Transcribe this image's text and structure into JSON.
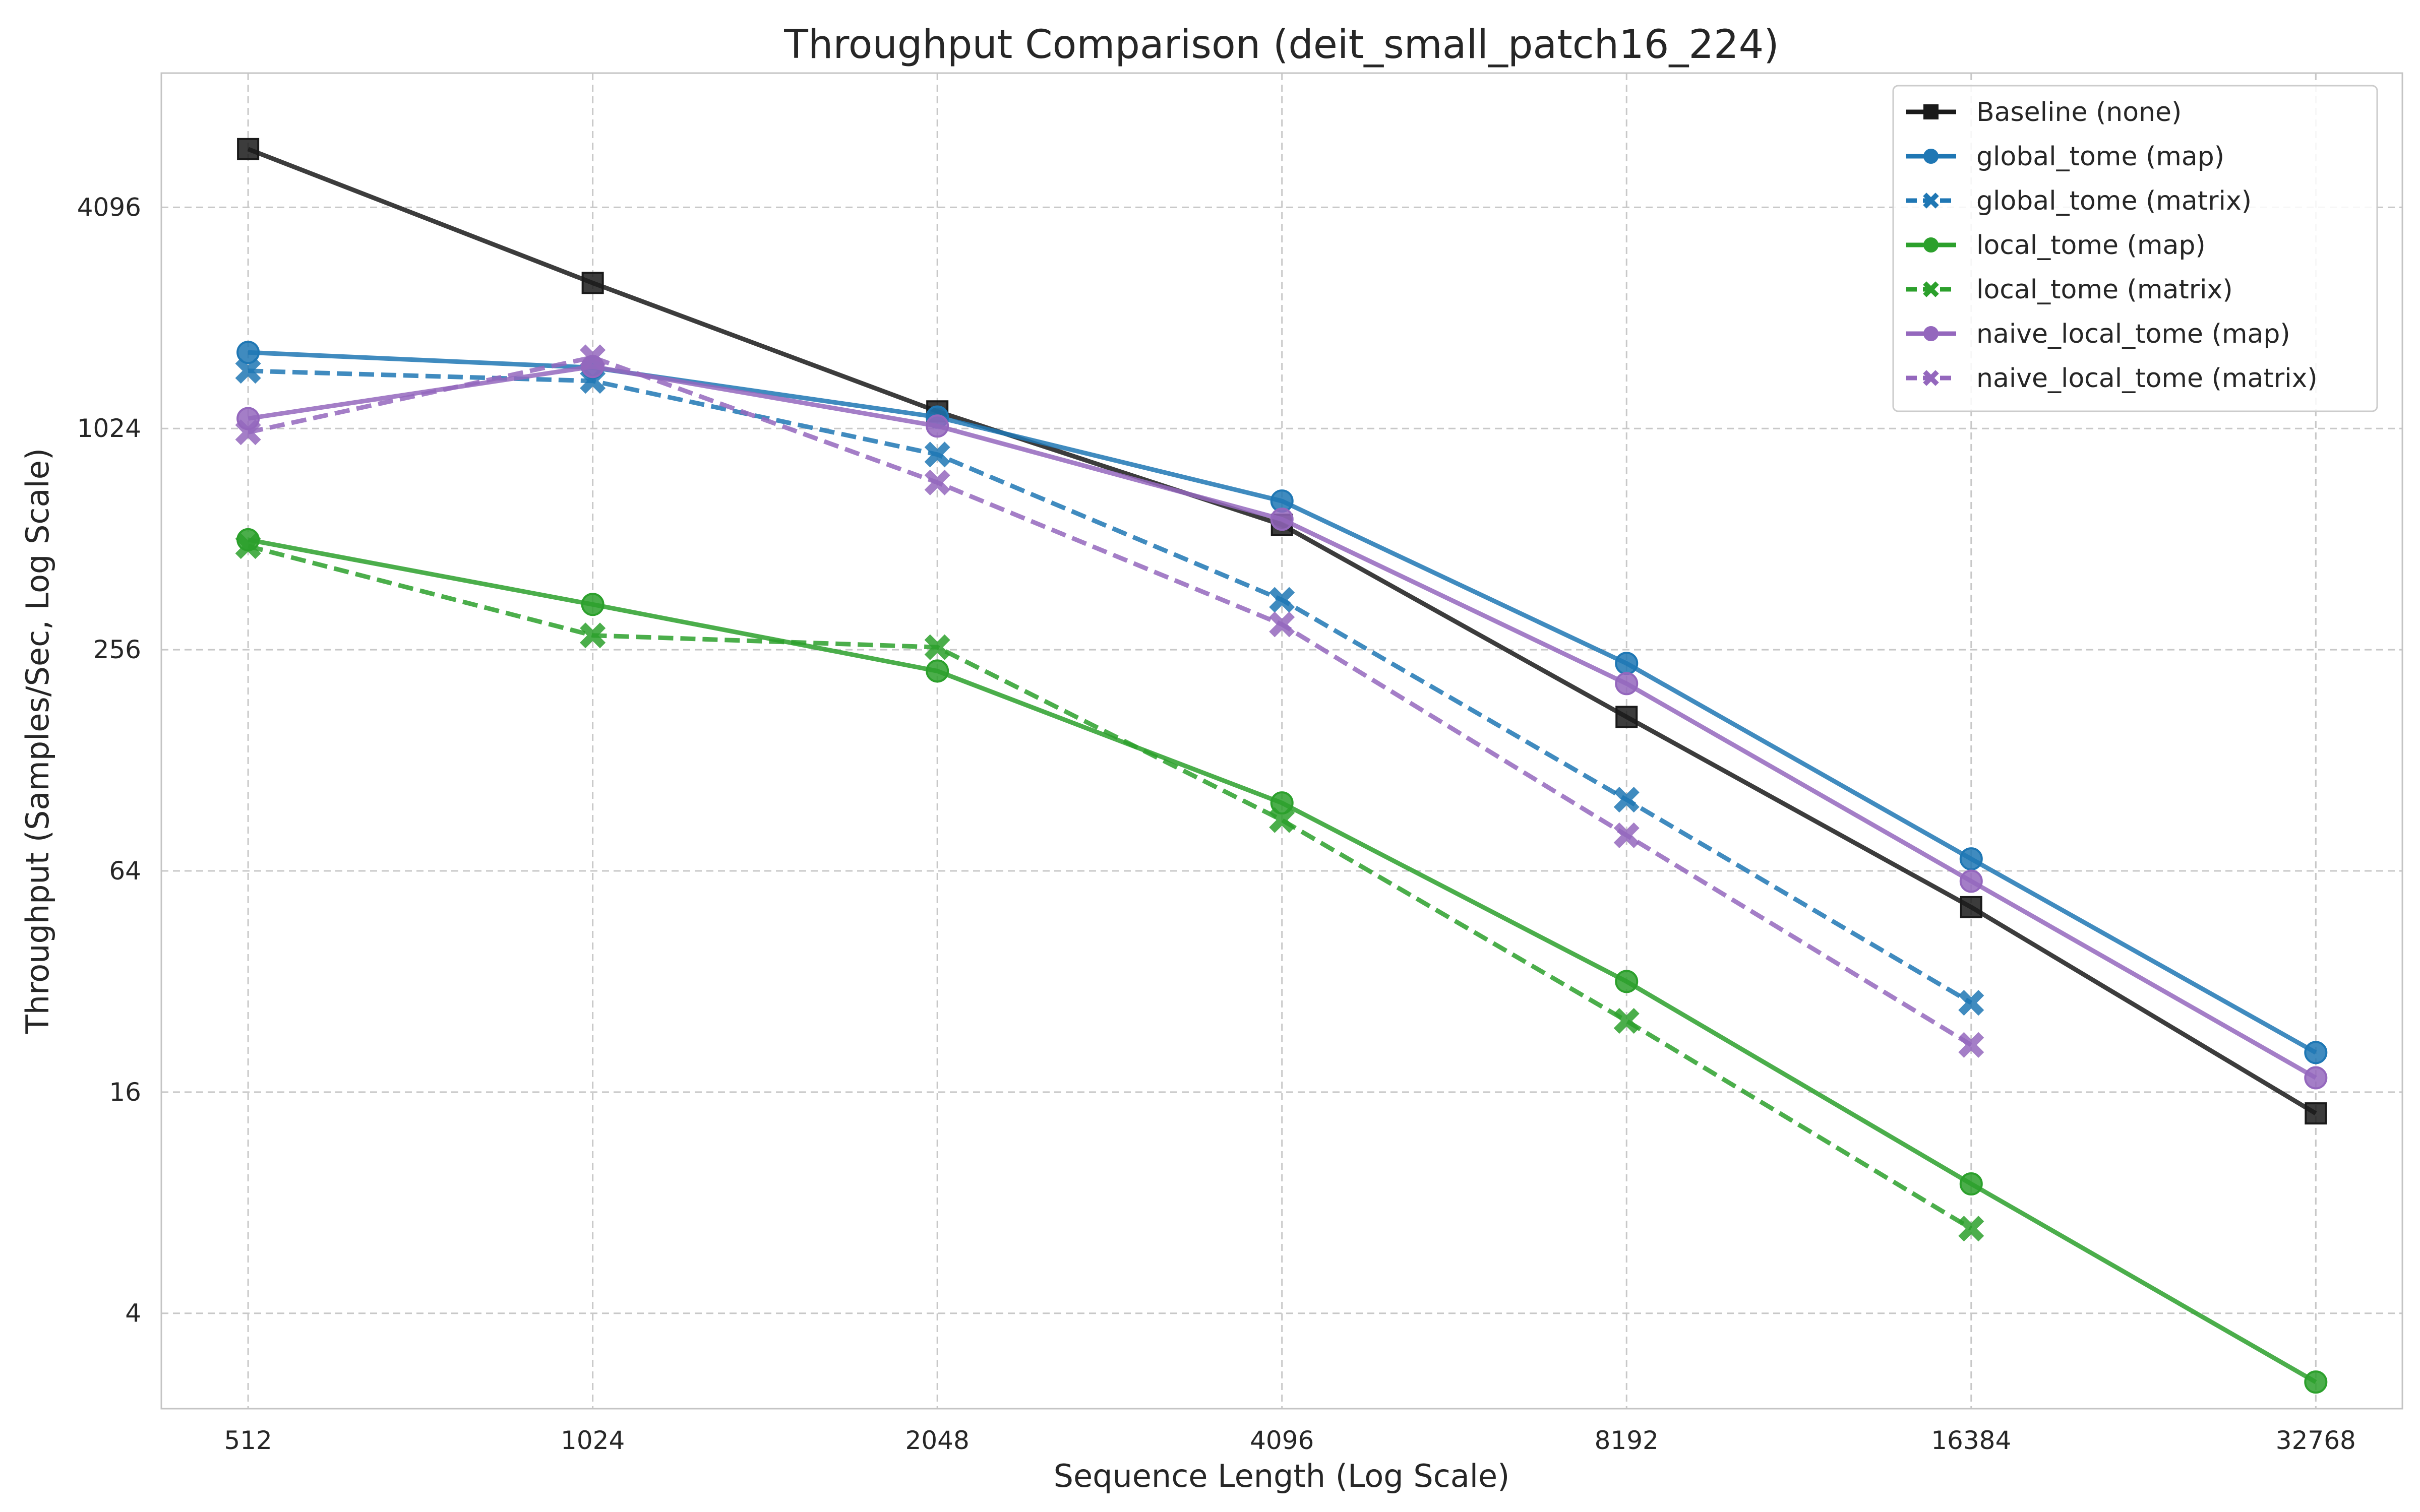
{
  "chart_data": {
    "type": "line",
    "title": "Throughput Comparison (deit_small_patch16_224)",
    "xlabel": "Sequence Length (Log Scale)",
    "ylabel": "Throughput (Samples/Sec, Log Scale)",
    "x_scale": "log2",
    "y_scale": "log2",
    "x": [
      512,
      1024,
      2048,
      4096,
      8192,
      16384,
      32768
    ],
    "x_ticks": [
      "512",
      "1024",
      "2048",
      "4096",
      "8192",
      "16384",
      "32768"
    ],
    "y_ticks": [
      "4",
      "16",
      "64",
      "256",
      "1024",
      "4096"
    ],
    "y_tick_values": [
      4,
      16,
      64,
      256,
      1024,
      4096
    ],
    "xlim": [
      430,
      39000
    ],
    "ylim": [
      2.2,
      9500
    ],
    "grid": true,
    "legend_position": "top-right",
    "series": [
      {
        "name": "Baseline (none)",
        "color": "#1a1a1a",
        "dash": "solid",
        "marker": "square",
        "values": [
          5900,
          2550,
          1140,
          560,
          168,
          51,
          14
        ]
      },
      {
        "name": "global_tome (map)",
        "color": "#1f77b4",
        "dash": "solid",
        "marker": "circle",
        "values": [
          1650,
          1500,
          1100,
          650,
          235,
          69,
          20.5
        ]
      },
      {
        "name": "global_tome (matrix)",
        "color": "#1f77b4",
        "dash": "dashed",
        "marker": "x",
        "values": [
          1470,
          1380,
          870,
          350,
          100,
          28,
          null
        ]
      },
      {
        "name": "local_tome (map)",
        "color": "#2ca02c",
        "dash": "solid",
        "marker": "circle",
        "values": [
          510,
          340,
          224,
          98,
          32,
          9,
          2.6
        ]
      },
      {
        "name": "local_tome (matrix)",
        "color": "#2ca02c",
        "dash": "dashed",
        "marker": "x",
        "values": [
          490,
          280,
          260,
          88,
          25,
          6.8,
          null
        ]
      },
      {
        "name": "naive_local_tome (map)",
        "color": "#9467bd",
        "dash": "solid",
        "marker": "circle",
        "values": [
          1090,
          1510,
          1040,
          580,
          207,
          60,
          17.5
        ]
      },
      {
        "name": "naive_local_tome (matrix)",
        "color": "#9467bd",
        "dash": "dashed",
        "marker": "x",
        "values": [
          1000,
          1600,
          730,
          300,
          80,
          21.5,
          null
        ]
      }
    ]
  }
}
